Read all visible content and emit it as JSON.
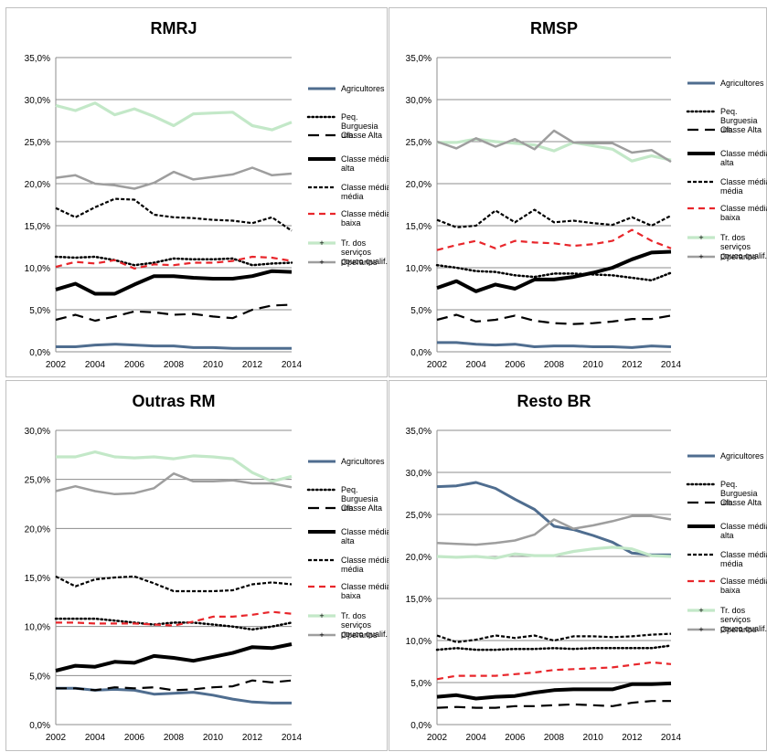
{
  "colors": {
    "Agricultores": "#4f6d8f",
    "Peq. Burguesia urb.": "#000000",
    "Classe Alta": "#000000",
    "Classe média alta": "#000000",
    "Classe média média": "#000000",
    "Classe média baixa": "#e8262b",
    "Tr. dos serviços pouco qualif.": "#c3e8c8",
    "Operarios": "#9e9e9e"
  },
  "legend": [
    {
      "label": "Agricultores"
    },
    {
      "label": "Peq. Burguesia urb."
    },
    {
      "label": "Classe Alta"
    },
    {
      "label": "Classe média alta"
    },
    {
      "label": "Classe média média"
    },
    {
      "label": "Classe média baixa"
    },
    {
      "label": "Tr. dos serviços pouco qualif."
    },
    {
      "label": "Operarios"
    }
  ],
  "chart_data": [
    {
      "type": "line",
      "title": "RMRJ",
      "x": [
        2002,
        2003,
        2004,
        2005,
        2006,
        2007,
        2008,
        2009,
        2010,
        2011,
        2012,
        2013,
        2014
      ],
      "x_ticks": [
        "2002",
        "2004",
        "2006",
        "2008",
        "2010",
        "2012",
        "2014"
      ],
      "ylim": [
        0,
        35
      ],
      "y_ticks": [
        "0,0%",
        "5,0%",
        "10,0%",
        "15,0%",
        "20,0%",
        "25,0%",
        "30,0%",
        "35,0%"
      ],
      "grid": true,
      "legend_position": "right",
      "series": [
        {
          "name": "Agricultores",
          "values": [
            0.6,
            0.6,
            0.8,
            0.9,
            0.8,
            0.7,
            0.7,
            0.5,
            0.5,
            0.4,
            0.4,
            0.4,
            0.4
          ]
        },
        {
          "name": "Peq. Burguesia urb.",
          "values": [
            11.3,
            11.2,
            11.3,
            10.9,
            10.3,
            10.6,
            11.1,
            11.0,
            11.0,
            11.1,
            10.3,
            10.5,
            10.6
          ]
        },
        {
          "name": "Classe Alta",
          "values": [
            3.8,
            4.4,
            3.7,
            4.2,
            4.8,
            4.7,
            4.4,
            4.5,
            4.2,
            4.0,
            5.0,
            5.5,
            5.6
          ]
        },
        {
          "name": "Classe média alta",
          "values": [
            7.4,
            8.1,
            6.9,
            6.9,
            8.0,
            9.0,
            9.0,
            8.8,
            8.7,
            8.7,
            9.0,
            9.6,
            9.5
          ]
        },
        {
          "name": "Classe média média",
          "values": [
            17.1,
            16.0,
            17.2,
            18.2,
            18.1,
            16.3,
            16.0,
            15.9,
            15.7,
            15.6,
            15.3,
            16.0,
            14.4
          ]
        },
        {
          "name": "Classe média baixa",
          "values": [
            10.1,
            10.7,
            10.5,
            10.9,
            9.9,
            10.4,
            10.3,
            10.6,
            10.6,
            10.8,
            11.3,
            11.2,
            10.8
          ]
        },
        {
          "name": "Tr. dos serviços pouco qualif.",
          "values": [
            29.3,
            28.7,
            29.6,
            28.2,
            28.9,
            28.0,
            26.9,
            28.3,
            28.4,
            28.5,
            26.9,
            26.4,
            27.3
          ]
        },
        {
          "name": "Operarios",
          "values": [
            20.7,
            21.0,
            20.0,
            19.8,
            19.4,
            20.1,
            21.4,
            20.5,
            20.8,
            21.1,
            21.9,
            21.0,
            21.2
          ]
        }
      ]
    },
    {
      "type": "line",
      "title": "RMSP",
      "x": [
        2002,
        2003,
        2004,
        2005,
        2006,
        2007,
        2008,
        2009,
        2010,
        2011,
        2012,
        2013,
        2014
      ],
      "x_ticks": [
        "2002",
        "2004",
        "2006",
        "2008",
        "2010",
        "2012",
        "2014"
      ],
      "ylim": [
        0,
        35
      ],
      "y_ticks": [
        "0,0%",
        "5,0%",
        "10,0%",
        "15,0%",
        "20,0%",
        "25,0%",
        "30,0%",
        "35,0%"
      ],
      "grid": true,
      "legend_position": "right",
      "series": [
        {
          "name": "Agricultores",
          "values": [
            1.1,
            1.1,
            0.9,
            0.8,
            0.9,
            0.6,
            0.7,
            0.7,
            0.6,
            0.6,
            0.5,
            0.7,
            0.6
          ]
        },
        {
          "name": "Peq. Burguesia urb.",
          "values": [
            10.3,
            10.0,
            9.6,
            9.5,
            9.1,
            8.9,
            9.3,
            9.3,
            9.2,
            9.1,
            8.8,
            8.5,
            9.4
          ]
        },
        {
          "name": "Classe Alta",
          "values": [
            3.8,
            4.4,
            3.6,
            3.8,
            4.3,
            3.7,
            3.4,
            3.3,
            3.4,
            3.6,
            3.9,
            3.9,
            4.3
          ]
        },
        {
          "name": "Classe média alta",
          "values": [
            7.6,
            8.4,
            7.2,
            8.0,
            7.5,
            8.6,
            8.6,
            8.9,
            9.4,
            10.0,
            11.0,
            11.8,
            11.9
          ]
        },
        {
          "name": "Classe média média",
          "values": [
            15.7,
            14.8,
            15.0,
            16.8,
            15.4,
            16.9,
            15.4,
            15.6,
            15.3,
            15.1,
            16.0,
            15.0,
            16.2
          ]
        },
        {
          "name": "Classe média baixa",
          "values": [
            12.1,
            12.7,
            13.2,
            12.3,
            13.2,
            13.0,
            12.9,
            12.6,
            12.8,
            13.2,
            14.5,
            13.2,
            12.3
          ]
        },
        {
          "name": "Tr. dos serviços pouco qualif.",
          "values": [
            24.9,
            24.9,
            25.3,
            25.0,
            24.8,
            24.6,
            23.9,
            24.9,
            24.5,
            24.1,
            22.7,
            23.3,
            22.8
          ]
        },
        {
          "name": "Operarios",
          "values": [
            25.0,
            24.2,
            25.4,
            24.4,
            25.3,
            24.1,
            26.3,
            24.9,
            24.8,
            24.8,
            23.7,
            24.0,
            22.6
          ]
        }
      ]
    },
    {
      "type": "line",
      "title": "Outras RM",
      "x": [
        2002,
        2003,
        2004,
        2005,
        2006,
        2007,
        2008,
        2009,
        2010,
        2011,
        2012,
        2013,
        2014
      ],
      "x_ticks": [
        "2002",
        "2004",
        "2006",
        "2008",
        "2010",
        "2012",
        "2014"
      ],
      "ylim": [
        0,
        30
      ],
      "y_ticks": [
        "0,0%",
        "5,0%",
        "10,0%",
        "15,0%",
        "20,0%",
        "25,0%",
        "30,0%"
      ],
      "grid": true,
      "legend_position": "right",
      "series": [
        {
          "name": "Agricultores",
          "values": [
            3.7,
            3.7,
            3.5,
            3.6,
            3.5,
            3.1,
            3.2,
            3.3,
            3.0,
            2.6,
            2.3,
            2.2,
            2.2
          ]
        },
        {
          "name": "Peq. Burguesia urb.",
          "values": [
            10.8,
            10.8,
            10.8,
            10.6,
            10.4,
            10.2,
            10.4,
            10.4,
            10.2,
            10.0,
            9.7,
            10.0,
            10.4
          ]
        },
        {
          "name": "Classe Alta",
          "values": [
            3.7,
            3.7,
            3.5,
            3.8,
            3.7,
            3.8,
            3.5,
            3.6,
            3.8,
            3.9,
            4.5,
            4.3,
            4.5
          ]
        },
        {
          "name": "Classe média alta",
          "values": [
            5.5,
            6.0,
            5.9,
            6.4,
            6.3,
            7.0,
            6.8,
            6.5,
            6.9,
            7.3,
            7.9,
            7.8,
            8.2
          ]
        },
        {
          "name": "Classe média média",
          "values": [
            15.1,
            14.1,
            14.8,
            15.0,
            15.1,
            14.4,
            13.6,
            13.6,
            13.6,
            13.7,
            14.3,
            14.5,
            14.3
          ]
        },
        {
          "name": "Classe média baixa",
          "values": [
            10.4,
            10.4,
            10.3,
            10.3,
            10.3,
            10.2,
            10.1,
            10.5,
            11.0,
            11.0,
            11.2,
            11.5,
            11.3
          ]
        },
        {
          "name": "Tr. dos serviços pouco qualif.",
          "values": [
            27.3,
            27.3,
            27.8,
            27.3,
            27.2,
            27.3,
            27.1,
            27.4,
            27.3,
            27.1,
            25.7,
            24.8,
            25.3
          ]
        },
        {
          "name": "Operarios",
          "values": [
            23.8,
            24.3,
            23.8,
            23.5,
            23.6,
            24.1,
            25.6,
            24.8,
            24.8,
            24.9,
            24.6,
            24.6,
            24.2
          ]
        }
      ]
    },
    {
      "type": "line",
      "title": "Resto BR",
      "x": [
        2002,
        2003,
        2004,
        2005,
        2006,
        2007,
        2008,
        2009,
        2010,
        2011,
        2012,
        2013,
        2014
      ],
      "x_ticks": [
        "2002",
        "2004",
        "2006",
        "2008",
        "2010",
        "2012",
        "2014"
      ],
      "ylim": [
        0,
        35
      ],
      "y_ticks": [
        "0,0%",
        "5,0%",
        "10,0%",
        "15,0%",
        "20,0%",
        "25,0%",
        "30,0%",
        "35,0%"
      ],
      "grid": true,
      "legend_position": "right",
      "series": [
        {
          "name": "Agricultores",
          "values": [
            28.3,
            28.4,
            28.8,
            28.1,
            26.8,
            25.6,
            23.6,
            23.2,
            22.5,
            21.7,
            20.4,
            20.2,
            20.2
          ]
        },
        {
          "name": "Peq. Burguesia urb.",
          "values": [
            8.9,
            9.1,
            8.9,
            8.9,
            9.0,
            9.0,
            9.1,
            9.0,
            9.1,
            9.1,
            9.1,
            9.1,
            9.4
          ]
        },
        {
          "name": "Classe Alta",
          "values": [
            2.0,
            2.1,
            2.0,
            2.0,
            2.2,
            2.2,
            2.3,
            2.4,
            2.3,
            2.2,
            2.6,
            2.8,
            2.8
          ]
        },
        {
          "name": "Classe média alta",
          "values": [
            3.3,
            3.5,
            3.1,
            3.3,
            3.4,
            3.8,
            4.1,
            4.2,
            4.2,
            4.2,
            4.8,
            4.8,
            4.9
          ]
        },
        {
          "name": "Classe média média",
          "values": [
            10.6,
            9.8,
            10.1,
            10.6,
            10.3,
            10.6,
            10.0,
            10.5,
            10.5,
            10.4,
            10.5,
            10.7,
            10.8
          ]
        },
        {
          "name": "Classe média baixa",
          "values": [
            5.4,
            5.8,
            5.8,
            5.8,
            6.0,
            6.2,
            6.5,
            6.6,
            6.7,
            6.8,
            7.1,
            7.4,
            7.2
          ]
        },
        {
          "name": "Tr. dos serviços pouco qualif.",
          "values": [
            20.0,
            19.9,
            20.0,
            19.8,
            20.3,
            20.1,
            20.1,
            20.6,
            20.9,
            21.1,
            20.9,
            20.1,
            20.0
          ]
        },
        {
          "name": "Operarios",
          "values": [
            21.6,
            21.5,
            21.4,
            21.6,
            21.9,
            22.6,
            24.4,
            23.3,
            23.7,
            24.2,
            24.8,
            24.8,
            24.4
          ]
        }
      ]
    }
  ]
}
